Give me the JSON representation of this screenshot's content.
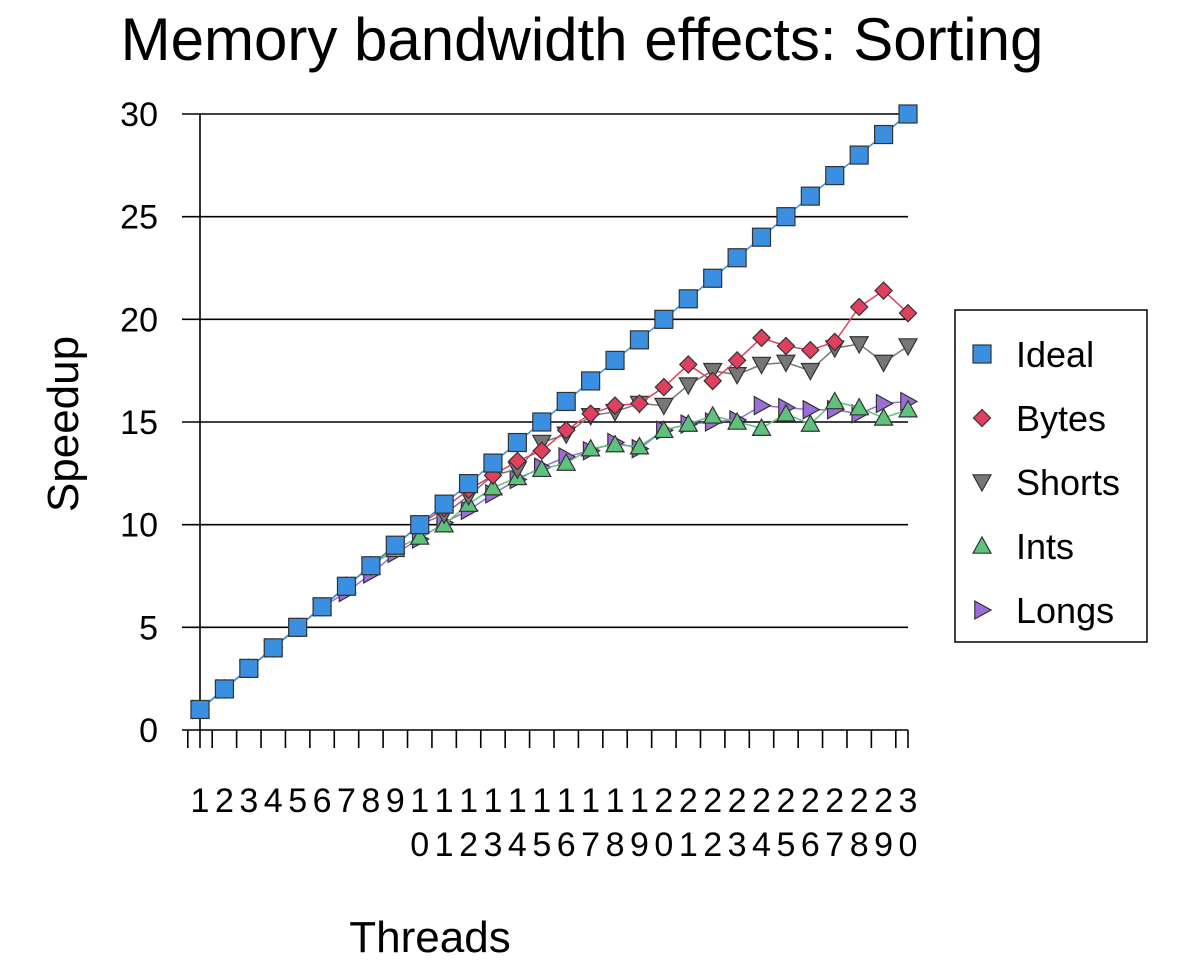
{
  "chart_data": {
    "type": "line",
    "title": "Memory bandwidth effects: Sorting",
    "xlabel": "Threads",
    "ylabel": "Speedup",
    "ylim": [
      0,
      30
    ],
    "yticks": [
      0,
      5,
      10,
      15,
      20,
      25,
      30
    ],
    "grid": "horizontal",
    "legend_position": "right",
    "x": [
      1,
      2,
      3,
      4,
      5,
      6,
      7,
      8,
      9,
      10,
      11,
      12,
      13,
      14,
      15,
      16,
      17,
      18,
      19,
      20,
      21,
      22,
      23,
      24,
      25,
      26,
      27,
      28,
      29,
      30
    ],
    "x_tick_labels": [
      "1",
      "2",
      "3",
      "4",
      "5",
      "6",
      "7",
      "8",
      "9",
      "10",
      "11",
      "12",
      "13",
      "14",
      "15",
      "16",
      "17",
      "18",
      "19",
      "20",
      "21",
      "22",
      "23",
      "24",
      "25",
      "26",
      "27",
      "28",
      "29",
      "30"
    ],
    "series": [
      {
        "name": "Ideal",
        "marker": "square",
        "color": "#3b8fe0",
        "values": [
          1,
          2,
          3,
          4,
          5,
          6,
          7,
          8,
          9,
          10,
          11,
          12,
          13,
          14,
          15,
          16,
          17,
          18,
          19,
          20,
          21,
          22,
          23,
          24,
          25,
          26,
          27,
          28,
          29,
          30
        ]
      },
      {
        "name": "Bytes",
        "marker": "diamond",
        "color": "#e0405e",
        "values": [
          1,
          2,
          3,
          4,
          5,
          6,
          7,
          8,
          9,
          10,
          10.8,
          11.7,
          12.4,
          13.1,
          13.6,
          14.6,
          15.4,
          15.8,
          15.9,
          16.7,
          17.8,
          17.0,
          18.0,
          19.1,
          18.7,
          18.5,
          18.9,
          20.6,
          21.4,
          20.3
        ]
      },
      {
        "name": "Shorts",
        "marker": "triangle-down",
        "color": "#777777",
        "values": [
          1,
          2,
          3,
          4,
          5,
          6,
          7,
          8,
          9,
          10,
          10.5,
          11.4,
          12.4,
          12.7,
          14.0,
          14.4,
          15.3,
          15.5,
          15.9,
          15.8,
          16.8,
          17.5,
          17.3,
          17.8,
          17.9,
          17.5,
          18.6,
          18.8,
          17.9,
          18.7
        ]
      },
      {
        "name": "Ints",
        "marker": "triangle-up",
        "color": "#5ec27a",
        "values": [
          1,
          2,
          3,
          4,
          5,
          6,
          7,
          8,
          8.8,
          9.4,
          10.0,
          11.0,
          11.8,
          12.3,
          12.7,
          13.0,
          13.7,
          13.9,
          13.8,
          14.6,
          14.9,
          15.3,
          15.0,
          14.7,
          15.4,
          14.9,
          16.0,
          15.7,
          15.2,
          15.6
        ]
      },
      {
        "name": "Longs",
        "marker": "triangle-right",
        "color": "#9b6dd6",
        "values": [
          1,
          2,
          3,
          4,
          5,
          6,
          6.7,
          7.6,
          8.6,
          9.3,
          10.1,
          10.7,
          11.5,
          12.2,
          12.8,
          13.3,
          13.6,
          14.0,
          13.7,
          14.6,
          14.9,
          15.0,
          15.1,
          15.8,
          15.7,
          15.6,
          15.6,
          15.4,
          15.9,
          16.0
        ]
      }
    ]
  }
}
